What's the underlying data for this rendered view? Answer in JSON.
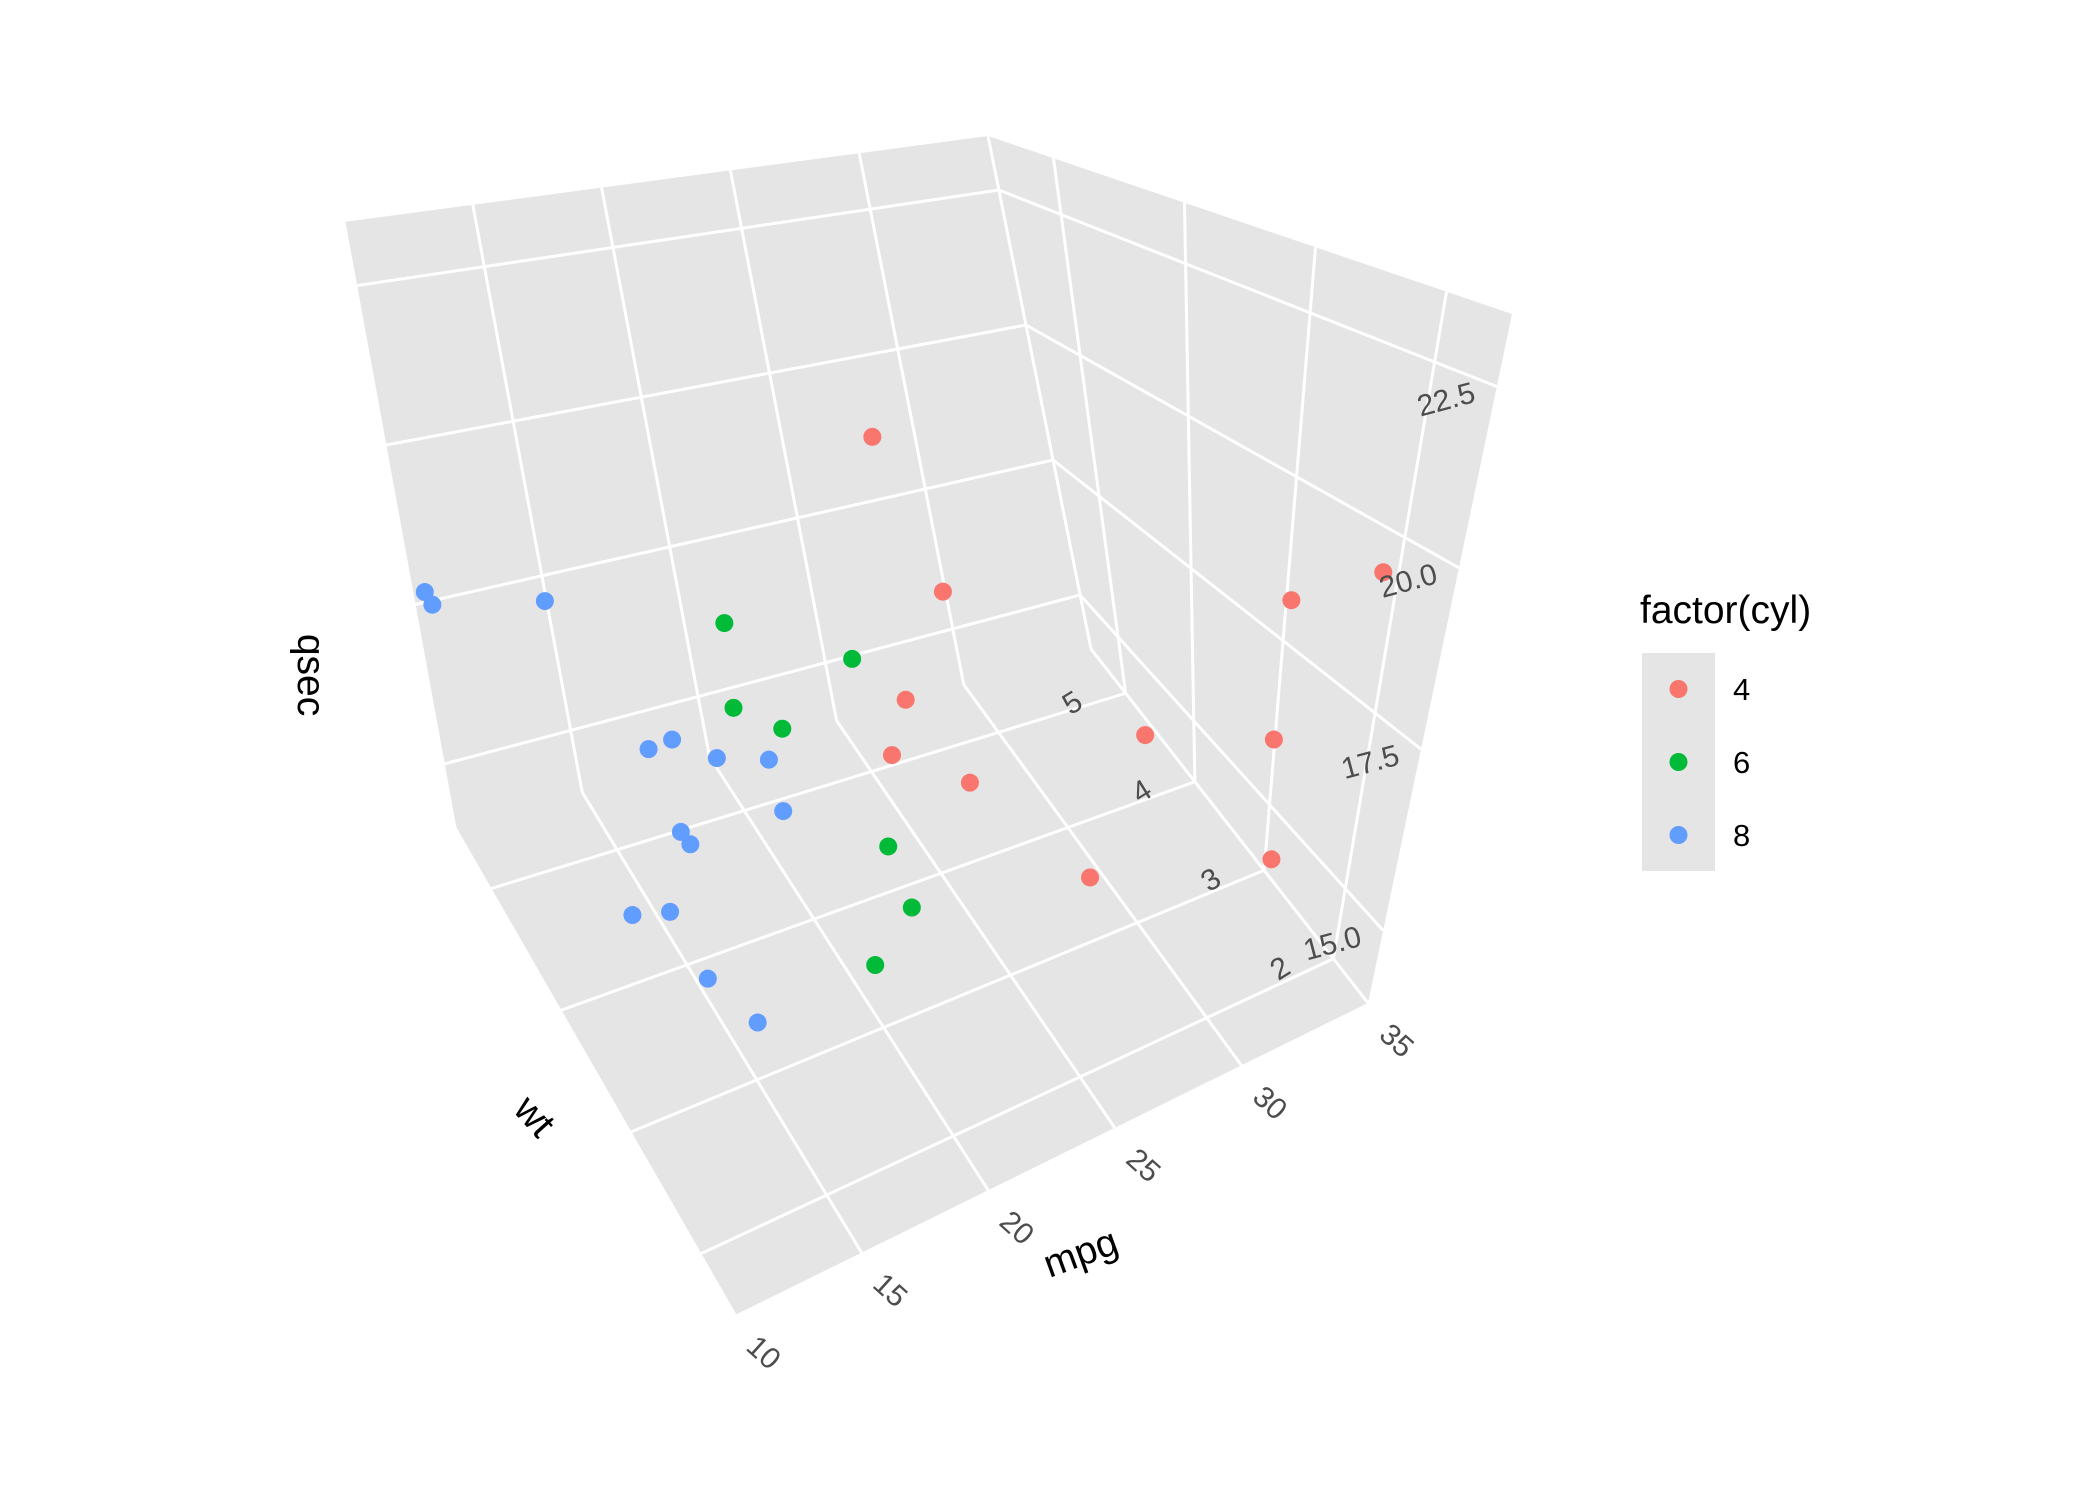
{
  "chart_data": {
    "type": "scatter",
    "projection": "3d",
    "xlabel": "mpg",
    "ylabel": "wt",
    "zlabel": "qsec",
    "xlim": [
      10,
      35
    ],
    "ylim": [
      1.5,
      5.5
    ],
    "zlim": [
      14,
      23.5
    ],
    "x_ticks": [
      "10",
      "15",
      "20",
      "25",
      "30",
      "35"
    ],
    "y_ticks": [
      "2",
      "3",
      "4",
      "5"
    ],
    "z_ticks": [
      "15.0",
      "17.5",
      "20.0",
      "22.5"
    ],
    "background": "#e5e5e5",
    "grid": true,
    "legend": {
      "title": "factor(cyl)",
      "position": "right",
      "entries": [
        {
          "label": "4",
          "color": "#f8766d"
        },
        {
          "label": "6",
          "color": "#00ba38"
        },
        {
          "label": "8",
          "color": "#619cff"
        }
      ]
    },
    "series": [
      {
        "name": "4",
        "color": "#f8766d",
        "points": [
          {
            "mpg": 22.8,
            "wt": 2.32,
            "qsec": 18.61
          },
          {
            "mpg": 24.4,
            "wt": 3.19,
            "qsec": 20.0
          },
          {
            "mpg": 22.8,
            "wt": 3.15,
            "qsec": 22.9
          },
          {
            "mpg": 32.4,
            "wt": 2.2,
            "qsec": 19.47
          },
          {
            "mpg": 30.4,
            "wt": 1.615,
            "qsec": 18.52
          },
          {
            "mpg": 33.9,
            "wt": 1.835,
            "qsec": 19.9
          },
          {
            "mpg": 21.5,
            "wt": 2.465,
            "qsec": 20.01
          },
          {
            "mpg": 27.3,
            "wt": 1.935,
            "qsec": 18.9
          },
          {
            "mpg": 26.0,
            "wt": 2.14,
            "qsec": 16.7
          },
          {
            "mpg": 30.4,
            "wt": 1.513,
            "qsec": 16.9
          },
          {
            "mpg": 21.4,
            "wt": 2.78,
            "qsec": 18.6
          }
        ]
      },
      {
        "name": "6",
        "color": "#00ba38",
        "points": [
          {
            "mpg": 21.0,
            "wt": 2.62,
            "qsec": 16.46
          },
          {
            "mpg": 21.0,
            "wt": 2.875,
            "qsec": 17.02
          },
          {
            "mpg": 21.4,
            "wt": 3.215,
            "qsec": 19.44
          },
          {
            "mpg": 18.1,
            "wt": 3.46,
            "qsec": 20.22
          },
          {
            "mpg": 19.2,
            "wt": 3.44,
            "qsec": 18.3
          },
          {
            "mpg": 17.8,
            "wt": 3.44,
            "qsec": 18.9
          },
          {
            "mpg": 19.7,
            "wt": 2.77,
            "qsec": 15.5
          }
        ]
      },
      {
        "name": "8",
        "color": "#619cff",
        "points": [
          {
            "mpg": 18.7,
            "wt": 3.44,
            "qsec": 17.02
          },
          {
            "mpg": 14.3,
            "wt": 3.57,
            "qsec": 15.84
          },
          {
            "mpg": 16.4,
            "wt": 4.07,
            "qsec": 17.4
          },
          {
            "mpg": 17.3,
            "wt": 3.73,
            "qsec": 17.6
          },
          {
            "mpg": 15.2,
            "wt": 3.78,
            "qsec": 18.0
          },
          {
            "mpg": 10.4,
            "wt": 5.25,
            "qsec": 17.98
          },
          {
            "mpg": 10.4,
            "wt": 5.424,
            "qsec": 17.82
          },
          {
            "mpg": 14.7,
            "wt": 5.345,
            "qsec": 17.42
          },
          {
            "mpg": 15.5,
            "wt": 3.52,
            "qsec": 16.87
          },
          {
            "mpg": 15.2,
            "wt": 3.435,
            "qsec": 17.3
          },
          {
            "mpg": 13.3,
            "wt": 3.84,
            "qsec": 15.41
          },
          {
            "mpg": 19.2,
            "wt": 3.845,
            "qsec": 17.05
          },
          {
            "mpg": 15.8,
            "wt": 3.17,
            "qsec": 14.5
          },
          {
            "mpg": 15.0,
            "wt": 3.57,
            "qsec": 14.6
          }
        ]
      }
    ]
  }
}
